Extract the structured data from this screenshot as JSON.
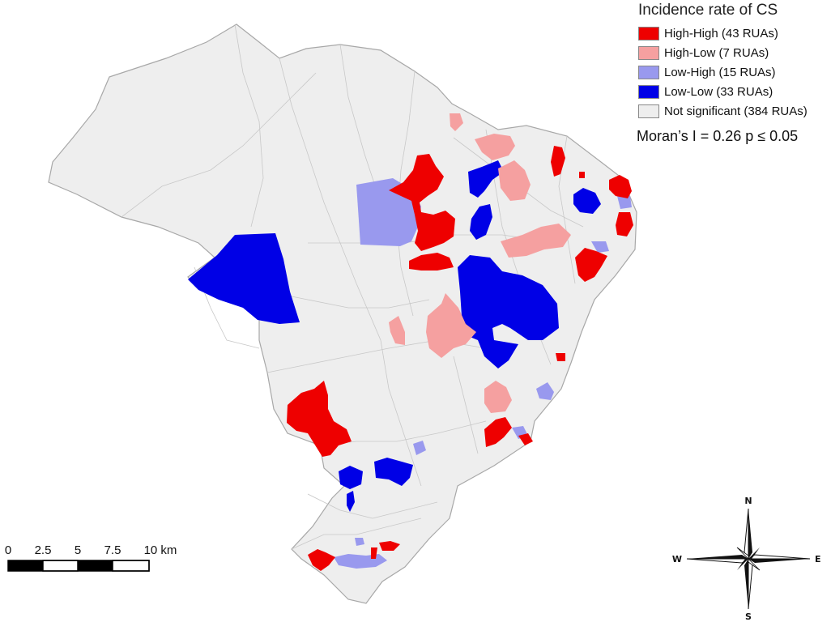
{
  "legend": {
    "title": "Incidence rate of CS",
    "items": [
      {
        "label": "High-High (43 RUAs)",
        "color": "#ee0000"
      },
      {
        "label": "High-Low (7 RUAs)",
        "color": "#f5a0a0"
      },
      {
        "label": "Low-High (15 RUAs)",
        "color": "#9999ee"
      },
      {
        "label": "Low-Low (33 RUAs)",
        "color": "#0000e6"
      },
      {
        "label": "Not significant (384 RUAs)",
        "color": "#eeeeee"
      }
    ]
  },
  "statistic": "Moran’s I = 0.26 p ≤ 0.05",
  "scale_bar": {
    "ticks": [
      "0",
      "2.5",
      "5",
      "7.5",
      "10 km"
    ]
  },
  "north_arrow": {
    "north": "N",
    "south": "S",
    "east": "E",
    "west": "W"
  },
  "colors": {
    "high_high": "#ee0000",
    "high_low": "#f5a0a0",
    "low_high": "#9999ee",
    "low_low": "#0000e6",
    "not_significant": "#eeeeee",
    "boundary": "#a8a8a8"
  }
}
